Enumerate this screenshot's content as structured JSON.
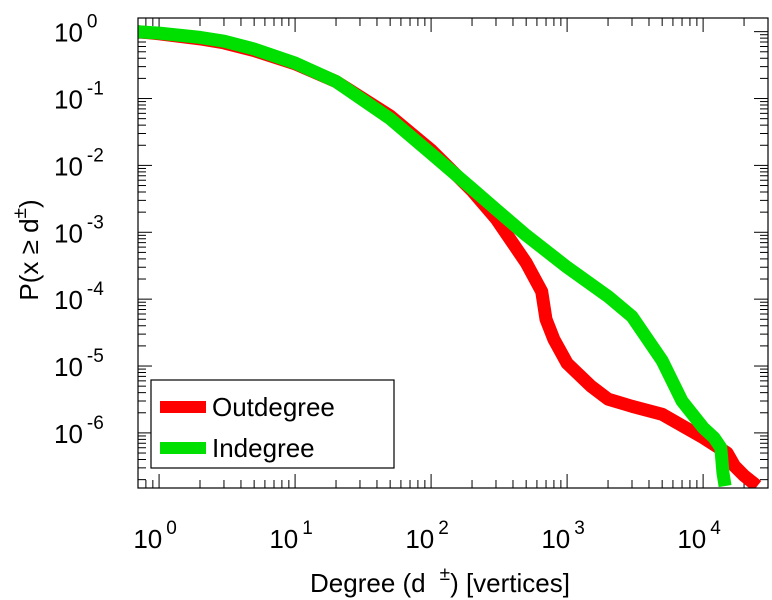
{
  "chart_data": {
    "type": "line",
    "xscale": "log",
    "yscale": "log",
    "xlim": [
      0.7,
      30000
    ],
    "ylim": [
      1.5e-07,
      1.6
    ],
    "grid": false,
    "legend_position": "bottom-left",
    "x_label": {
      "prefix": "Degree (d",
      "superscript": "±",
      "suffix": ") [vertices]"
    },
    "y_label": {
      "prefix": "P(x ≥ d",
      "superscript": "±",
      "suffix": ")"
    },
    "x_ticks": [
      {
        "value": 1,
        "base": "10",
        "exp": "0"
      },
      {
        "value": 10,
        "base": "10",
        "exp": "1"
      },
      {
        "value": 100,
        "base": "10",
        "exp": "2"
      },
      {
        "value": 1000,
        "base": "10",
        "exp": "3"
      },
      {
        "value": 10000,
        "base": "10",
        "exp": "4"
      }
    ],
    "y_ticks": [
      {
        "value": 1,
        "base": "10",
        "exp": "0"
      },
      {
        "value": 0.1,
        "base": "10",
        "exp": "-1"
      },
      {
        "value": 0.01,
        "base": "10",
        "exp": "-2"
      },
      {
        "value": 0.001,
        "base": "10",
        "exp": "-3"
      },
      {
        "value": 0.0001,
        "base": "10",
        "exp": "-4"
      },
      {
        "value": 1e-05,
        "base": "10",
        "exp": "-5"
      },
      {
        "value": 1e-06,
        "base": "10",
        "exp": "-6"
      }
    ],
    "series": [
      {
        "name": "Outdegree",
        "color": "#ff0000",
        "points": [
          [
            0.7,
            1.0
          ],
          [
            1,
            0.93
          ],
          [
            2,
            0.78
          ],
          [
            3,
            0.68
          ],
          [
            5,
            0.52
          ],
          [
            10,
            0.33
          ],
          [
            20,
            0.18
          ],
          [
            50,
            0.055
          ],
          [
            100,
            0.017
          ],
          [
            200,
            0.0042
          ],
          [
            300,
            0.0016
          ],
          [
            500,
            0.00035
          ],
          [
            650,
            0.00013
          ],
          [
            700,
            5e-05
          ],
          [
            800,
            2.5e-05
          ],
          [
            1000,
            1.1e-05
          ],
          [
            1500,
            5e-06
          ],
          [
            2000,
            3.2e-06
          ],
          [
            3000,
            2.5e-06
          ],
          [
            5000,
            1.9e-06
          ],
          [
            8000,
            1.1e-06
          ],
          [
            10000,
            8.5e-07
          ],
          [
            15000,
            5e-07
          ],
          [
            17000,
            3.2e-07
          ],
          [
            20000,
            2.3e-07
          ],
          [
            25000,
            1.6e-07
          ]
        ]
      },
      {
        "name": "Indegree",
        "color": "#00e000",
        "points": [
          [
            0.7,
            1.0
          ],
          [
            1,
            0.95
          ],
          [
            2,
            0.82
          ],
          [
            3,
            0.72
          ],
          [
            5,
            0.55
          ],
          [
            10,
            0.34
          ],
          [
            20,
            0.18
          ],
          [
            50,
            0.05
          ],
          [
            100,
            0.015
          ],
          [
            200,
            0.0045
          ],
          [
            300,
            0.0022
          ],
          [
            500,
            0.0009
          ],
          [
            1000,
            0.0003
          ],
          [
            2000,
            0.00011
          ],
          [
            3000,
            5.5e-05
          ],
          [
            5000,
            1.2e-05
          ],
          [
            7000,
            3e-06
          ],
          [
            10000,
            1.2e-06
          ],
          [
            12000,
            8.5e-07
          ],
          [
            13500,
            6e-07
          ],
          [
            14000,
            2.5e-07
          ],
          [
            14500,
            1.6e-07
          ]
        ]
      }
    ]
  }
}
